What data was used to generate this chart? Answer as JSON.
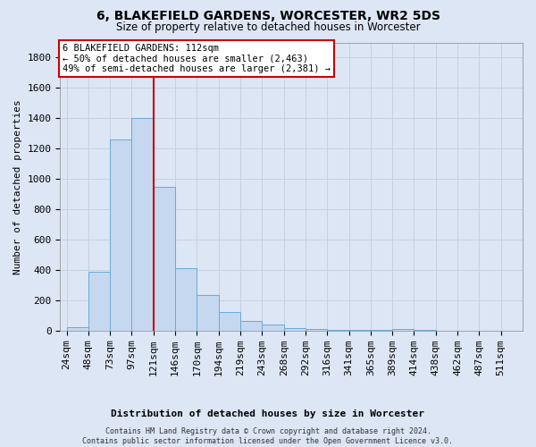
{
  "title": "6, BLAKEFIELD GARDENS, WORCESTER, WR2 5DS",
  "subtitle": "Size of property relative to detached houses in Worcester",
  "xlabel": "Distribution of detached houses by size in Worcester",
  "ylabel": "Number of detached properties",
  "footer_line1": "Contains HM Land Registry data © Crown copyright and database right 2024.",
  "footer_line2": "Contains public sector information licensed under the Open Government Licence v3.0.",
  "annotation_line1": "6 BLAKEFIELD GARDENS: 112sqm",
  "annotation_line2": "← 50% of detached houses are smaller (2,463)",
  "annotation_line3": "49% of semi-detached houses are larger (2,381) →",
  "bin_labels": [
    "24sqm",
    "48sqm",
    "73sqm",
    "97sqm",
    "121sqm",
    "146sqm",
    "170sqm",
    "194sqm",
    "219sqm",
    "243sqm",
    "268sqm",
    "292sqm",
    "316sqm",
    "341sqm",
    "365sqm",
    "389sqm",
    "414sqm",
    "438sqm",
    "462sqm",
    "487sqm",
    "511sqm"
  ],
  "bar_values": [
    25,
    390,
    1260,
    1400,
    950,
    410,
    235,
    120,
    65,
    40,
    18,
    10,
    5,
    3,
    2,
    10,
    2,
    0,
    0,
    0,
    0
  ],
  "bar_color": "#c5d8f0",
  "bar_edge_color": "#6aaad4",
  "red_line_x": 4.0,
  "red_line_color": "#cc0000",
  "grid_color": "#c8d0e0",
  "background_color": "#dce6f5",
  "ylim": [
    0,
    1900
  ],
  "yticks": [
    0,
    200,
    400,
    600,
    800,
    1000,
    1200,
    1400,
    1600,
    1800
  ],
  "title_fontsize": 10,
  "subtitle_fontsize": 8.5,
  "axis_label_fontsize": 8,
  "tick_fontsize": 8,
  "annotation_fontsize": 7.5,
  "footer_fontsize": 6
}
